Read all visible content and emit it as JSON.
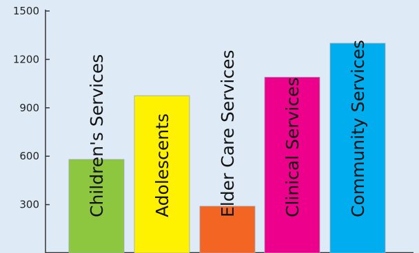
{
  "chart_data": {
    "type": "bar",
    "title": "",
    "xlabel": "",
    "ylabel": "",
    "ylim": [
      0,
      1500
    ],
    "yticks": [
      300,
      600,
      900,
      1200,
      1500
    ],
    "grid": false,
    "categories": [
      "Children's Services",
      "Adolescents",
      "Elder Care Services",
      "Clinical Services",
      "Community Services"
    ],
    "values": [
      580,
      975,
      290,
      1090,
      1300
    ],
    "colors": [
      "#8dc63f",
      "#fff200",
      "#f26522",
      "#ec008c",
      "#00aeef"
    ],
    "background": "#deeaf5",
    "axis_color": "#333333"
  }
}
